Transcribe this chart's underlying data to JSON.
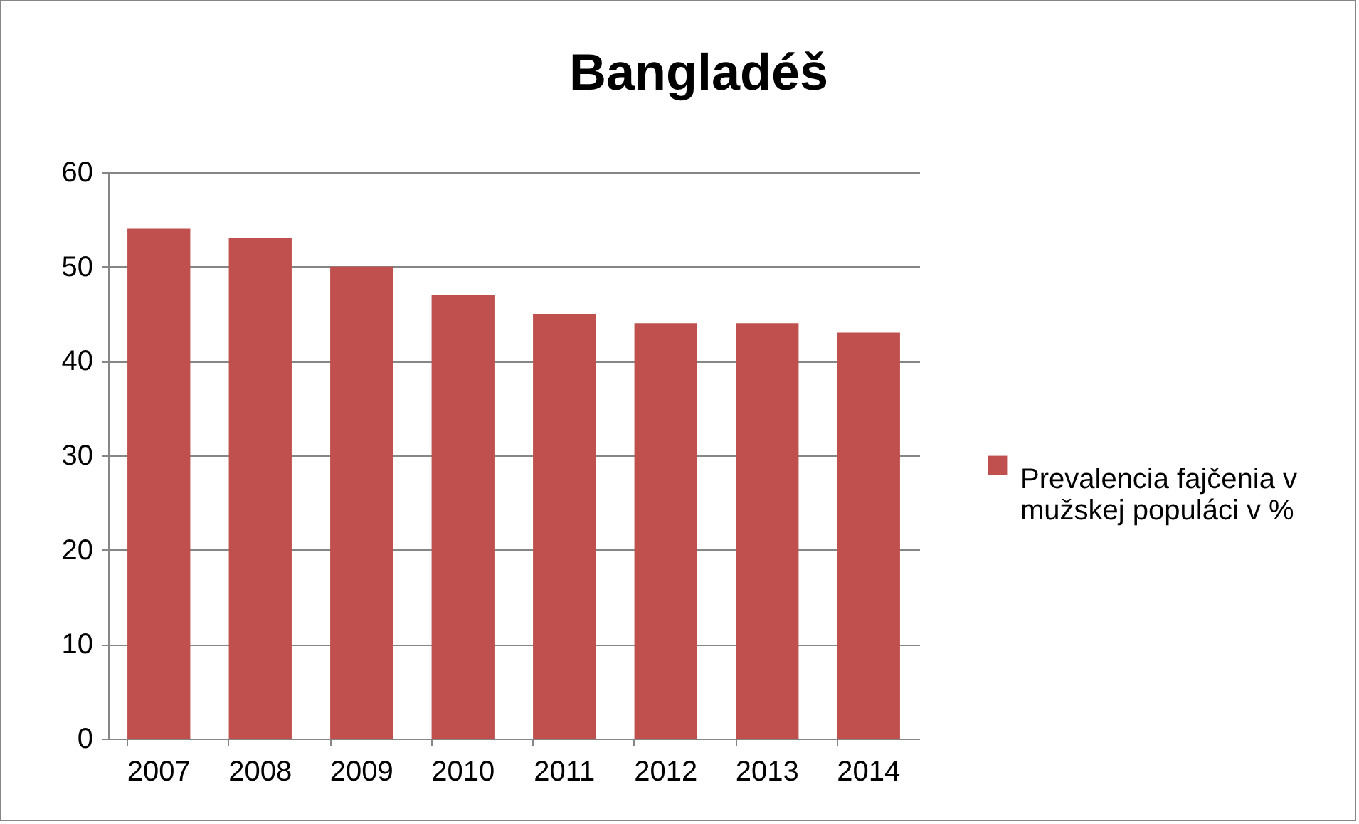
{
  "chart_data": {
    "type": "bar",
    "title": "Bangladéš",
    "categories": [
      "2007",
      "2008",
      "2009",
      "2010",
      "2011",
      "2012",
      "2013",
      "2014"
    ],
    "series": [
      {
        "name": "Prevalencia fajčenia v mužskej populáci v %",
        "color": "#c0504d",
        "values": [
          54,
          53,
          50,
          47,
          45,
          44,
          44,
          43
        ]
      }
    ],
    "ylim": [
      0,
      60
    ],
    "yticks": [
      0,
      10,
      20,
      30,
      40,
      50,
      60
    ],
    "grid": "y",
    "legend": "right"
  }
}
